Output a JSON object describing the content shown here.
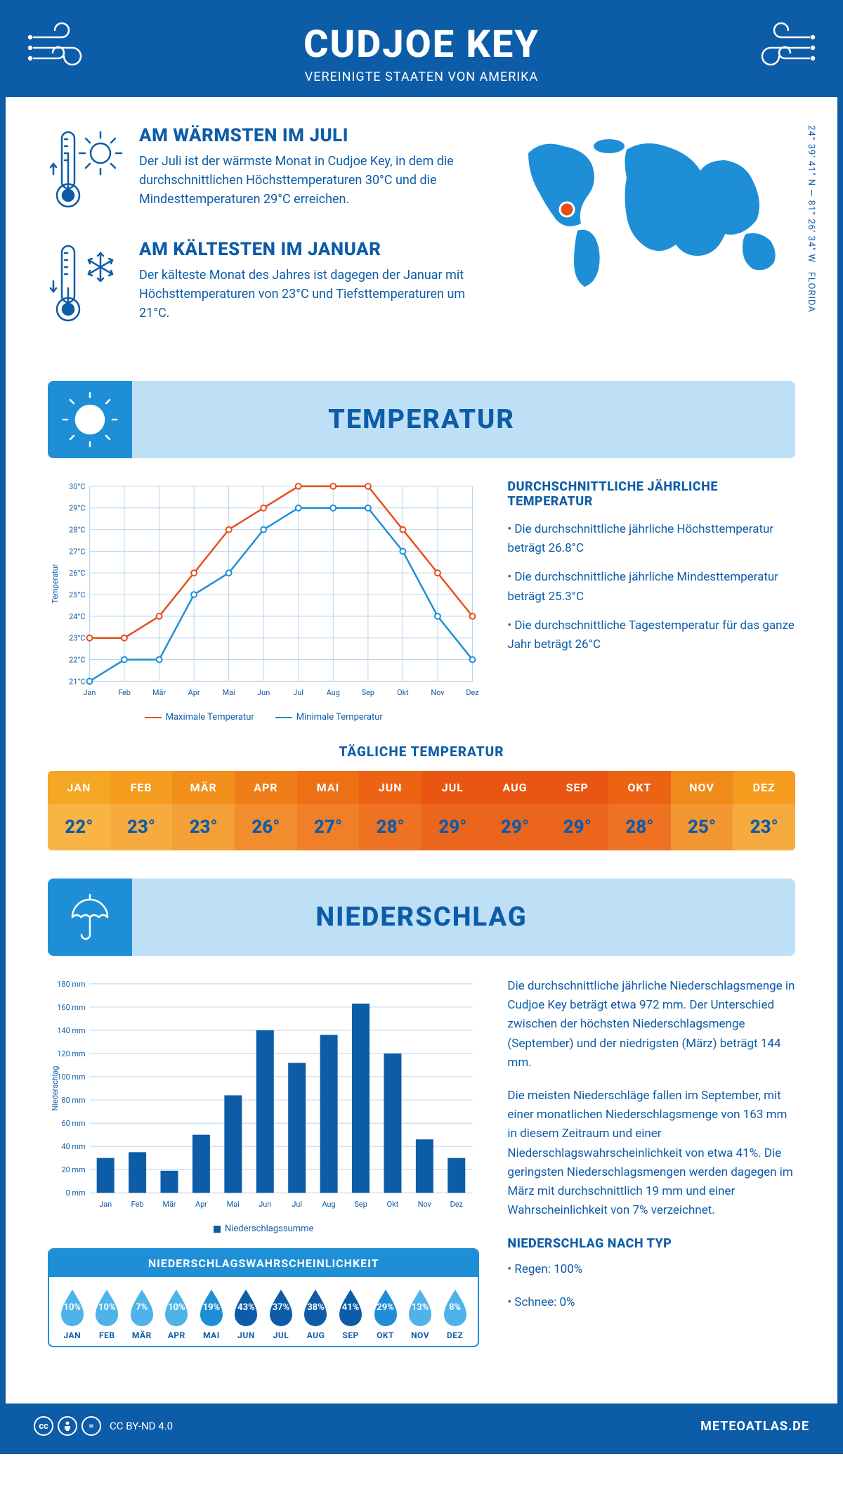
{
  "header": {
    "title": "CUDJOE KEY",
    "subtitle": "VEREINIGTE STAATEN VON AMERIKA"
  },
  "intro": {
    "warm": {
      "heading": "AM WÄRMSTEN IM JULI",
      "text": "Der Juli ist der wärmste Monat in Cudjoe Key, in dem die durchschnittlichen Höchsttemperaturen 30°C und die Mindesttemperaturen 29°C erreichen."
    },
    "cold": {
      "heading": "AM KÄLTESTEN IM JANUAR",
      "text": "Der kälteste Monat des Jahres ist dagegen der Januar mit Höchsttemperaturen von 23°C und Tiefsttemperaturen um 21°C."
    }
  },
  "coords": {
    "lat": "24° 39' 41\" N",
    "lon": "81° 26' 34\" W",
    "state": "FLORIDA"
  },
  "sections": {
    "temperature": "TEMPERATUR",
    "precipitation": "NIEDERSCHLAG"
  },
  "temp_chart": {
    "type": "line",
    "months": [
      "Jan",
      "Feb",
      "Mär",
      "Apr",
      "Mai",
      "Jun",
      "Jul",
      "Aug",
      "Sep",
      "Okt",
      "Nov",
      "Dez"
    ],
    "max": [
      23,
      23,
      24,
      26,
      28,
      29,
      30,
      30,
      30,
      28,
      26,
      24
    ],
    "min": [
      21,
      22,
      22,
      25,
      26,
      28,
      29,
      29,
      29,
      27,
      24,
      22
    ],
    "ylim": [
      21,
      30
    ],
    "ytick_step": 1,
    "max_color": "#e84e1b",
    "min_color": "#1e8fd6",
    "grid_color": "#b8d4ec",
    "text_color": "#0d5ca8",
    "ylabel": "Temperatur",
    "legend": {
      "max": "Maximale Temperatur",
      "min": "Minimale Temperatur"
    }
  },
  "temp_info": {
    "heading": "DURCHSCHNITTLICHE JÄHRLICHE TEMPERATUR",
    "bullets": [
      "• Die durchschnittliche jährliche Höchsttemperatur beträgt 26.8°C",
      "• Die durchschnittliche jährliche Mindesttemperatur beträgt 25.3°C",
      "• Die durchschnittliche Tagestemperatur für das ganze Jahr beträgt 26°C"
    ]
  },
  "daily": {
    "title": "TÄGLICHE TEMPERATUR",
    "months": [
      "JAN",
      "FEB",
      "MÄR",
      "APR",
      "MAI",
      "JUN",
      "JUL",
      "AUG",
      "SEP",
      "OKT",
      "NOV",
      "DEZ"
    ],
    "values": [
      "22°",
      "23°",
      "23°",
      "26°",
      "27°",
      "28°",
      "29°",
      "29°",
      "29°",
      "28°",
      "25°",
      "23°"
    ],
    "header_colors": [
      "#f5a623",
      "#f59c1f",
      "#f28f1b",
      "#ef7e18",
      "#ed7015",
      "#eb6313",
      "#e95611",
      "#e95611",
      "#e95611",
      "#eb6313",
      "#f08a1a",
      "#f59c1f"
    ],
    "cell_colors": [
      "#f8b546",
      "#f7ab3e",
      "#f5a036",
      "#f28d2e",
      "#f07f27",
      "#ee7221",
      "#ec651c",
      "#ec651c",
      "#ec651c",
      "#ee7221",
      "#f39732",
      "#f7ab3e"
    ]
  },
  "precip_chart": {
    "type": "bar",
    "months": [
      "Jan",
      "Feb",
      "Mär",
      "Apr",
      "Mai",
      "Jun",
      "Jul",
      "Aug",
      "Sep",
      "Okt",
      "Nov",
      "Dez"
    ],
    "values": [
      30,
      35,
      19,
      50,
      84,
      140,
      112,
      136,
      163,
      120,
      46,
      30
    ],
    "ylim": [
      0,
      180
    ],
    "ytick_step": 20,
    "bar_color": "#0d5ca8",
    "grid_color": "#b8d4ec",
    "text_color": "#0d5ca8",
    "ylabel": "Niederschlag",
    "legend": "Niederschlagssumme"
  },
  "precip_text": {
    "p1": "Die durchschnittliche jährliche Niederschlagsmenge in Cudjoe Key beträgt etwa 972 mm. Der Unterschied zwischen der höchsten Niederschlagsmenge (September) und der niedrigsten (März) beträgt 144 mm.",
    "p2": "Die meisten Niederschläge fallen im September, mit einer monatlichen Niederschlagsmenge von 163 mm in diesem Zeitraum und einer Niederschlagswahrscheinlichkeit von etwa 41%. Die geringsten Niederschlagsmengen werden dagegen im März mit durchschnittlich 19 mm und einer Wahrscheinlichkeit von 7% verzeichnet.",
    "type_heading": "NIEDERSCHLAG NACH TYP",
    "type_bullets": [
      "• Regen: 100%",
      "• Schnee: 0%"
    ]
  },
  "prob": {
    "title": "NIEDERSCHLAGSWAHRSCHEINLICHKEIT",
    "months": [
      "JAN",
      "FEB",
      "MÄR",
      "APR",
      "MAI",
      "JUN",
      "JUL",
      "AUG",
      "SEP",
      "OKT",
      "NOV",
      "DEZ"
    ],
    "values": [
      "10%",
      "10%",
      "7%",
      "10%",
      "19%",
      "43%",
      "37%",
      "38%",
      "41%",
      "29%",
      "13%",
      "8%"
    ],
    "colors": [
      "#4db3e8",
      "#4db3e8",
      "#4db3e8",
      "#4db3e8",
      "#1e8fd6",
      "#0d5ca8",
      "#0d5ca8",
      "#0d5ca8",
      "#0d5ca8",
      "#1e8fd6",
      "#4db3e8",
      "#4db3e8"
    ]
  },
  "footer": {
    "license": "CC BY-ND 4.0",
    "site": "METEOATLAS.DE"
  },
  "colors": {
    "primary": "#0d5ca8",
    "accent": "#1e8fd6",
    "light": "#bde0f7",
    "marker": "#e84e1b",
    "map": "#1e8fd6"
  }
}
